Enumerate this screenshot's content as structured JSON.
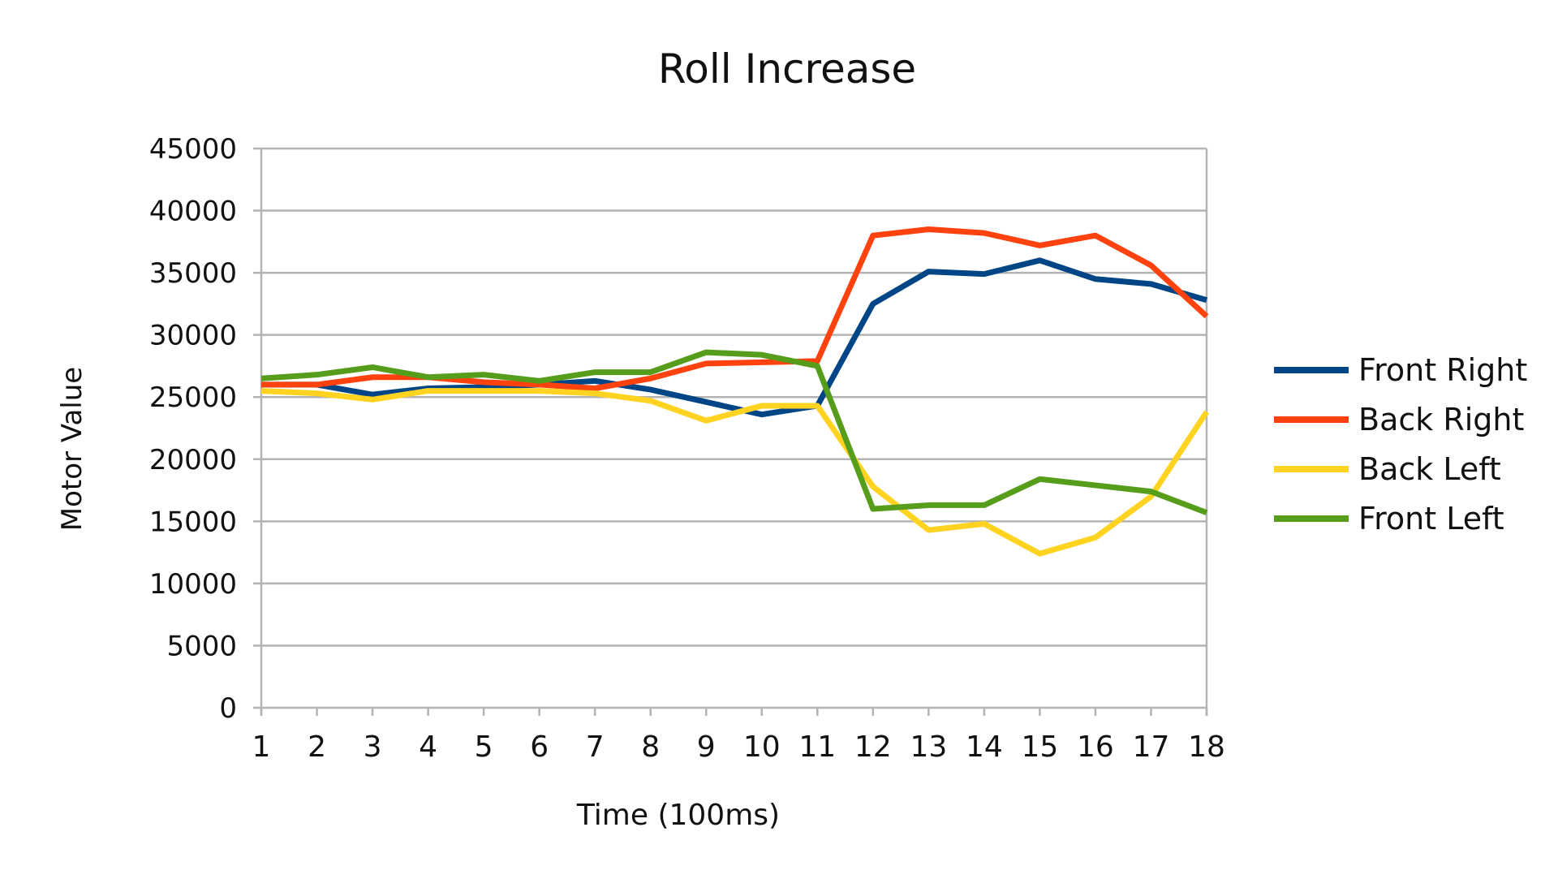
{
  "chart_data": {
    "type": "line",
    "title": "Roll Increase",
    "xlabel": "Time (100ms)",
    "ylabel": "Motor Value",
    "x": [
      1,
      2,
      3,
      4,
      5,
      6,
      7,
      8,
      9,
      10,
      11,
      12,
      13,
      14,
      15,
      16,
      17,
      18
    ],
    "ylim": [
      0,
      45000
    ],
    "yticks": [
      0,
      5000,
      10000,
      15000,
      20000,
      25000,
      30000,
      35000,
      40000,
      45000
    ],
    "grid": true,
    "legend": "right",
    "series": [
      {
        "name": "Front Right",
        "color": "#004586",
        "values": [
          26000,
          26000,
          25200,
          25700,
          25800,
          26000,
          26300,
          25600,
          24600,
          23600,
          24300,
          32500,
          35100,
          34900,
          36000,
          34500,
          34100,
          32800
        ]
      },
      {
        "name": "Back Right",
        "color": "#ff420e",
        "values": [
          26000,
          26000,
          26600,
          26600,
          26200,
          26000,
          25700,
          26500,
          27700,
          27800,
          27900,
          38000,
          38500,
          38200,
          37200,
          38000,
          35600,
          31500
        ]
      },
      {
        "name": "Back Left",
        "color": "#ffd320",
        "values": [
          25500,
          25300,
          24800,
          25500,
          25500,
          25500,
          25300,
          24700,
          23100,
          24300,
          24300,
          17800,
          14300,
          14800,
          12400,
          13700,
          17000,
          23800
        ]
      },
      {
        "name": "Front Left",
        "color": "#579d1c",
        "values": [
          26500,
          26800,
          27400,
          26600,
          26800,
          26300,
          27000,
          27000,
          28600,
          28400,
          27500,
          16000,
          16300,
          16300,
          18400,
          17900,
          17400,
          15700
        ]
      }
    ]
  }
}
